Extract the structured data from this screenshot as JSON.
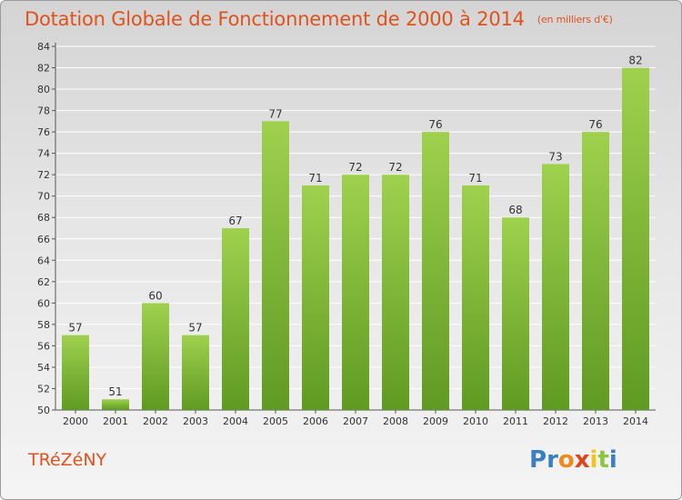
{
  "title": "Dotation Globale de Fonctionnement de 2000 à 2014",
  "unit_note": "(en milliers d'€)",
  "commune": "TRéZéNY",
  "logo": {
    "letters": [
      "P",
      "r",
      "o",
      "x",
      "i",
      "t",
      "i"
    ],
    "colors": [
      "#3a7fc1",
      "#3a7fc1",
      "#f08a1c",
      "#e0421b",
      "#f4c518",
      "#8cc63f",
      "#3a7fc1"
    ]
  },
  "colors": {
    "bar": "#7ab83a",
    "bar_light": "#9fd14e",
    "bar_dark": "#5f9a22",
    "title": "#e0521b"
  },
  "chart_data": {
    "type": "bar",
    "categories": [
      "2000",
      "2001",
      "2002",
      "2003",
      "2004",
      "2005",
      "2006",
      "2007",
      "2008",
      "2009",
      "2010",
      "2011",
      "2012",
      "2013",
      "2014"
    ],
    "values": [
      57,
      51,
      60,
      57,
      67,
      77,
      71,
      72,
      72,
      76,
      71,
      68,
      73,
      76,
      82
    ],
    "ylim": [
      50,
      84
    ],
    "yticks": [
      50,
      52,
      54,
      56,
      58,
      60,
      62,
      64,
      66,
      68,
      70,
      72,
      74,
      76,
      78,
      80,
      82,
      84
    ],
    "grid": true,
    "xlabel": "",
    "ylabel": ""
  }
}
